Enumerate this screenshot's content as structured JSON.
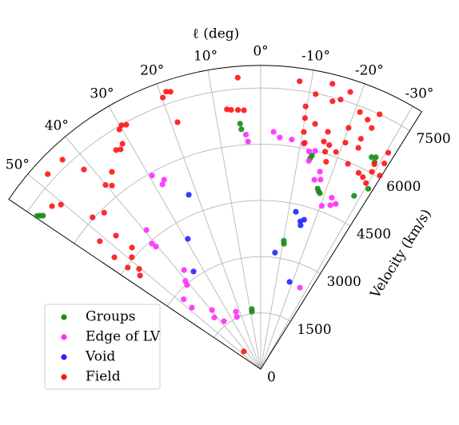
{
  "chart_data": {
    "type": "polar-scatter",
    "x_label": "ℓ (deg)",
    "y_label": "Velocity (km/s)",
    "xlim": [
      -32,
      56
    ],
    "ylim": [
      0,
      8100
    ],
    "xticks": [
      {
        "value": -30,
        "label": "-30°"
      },
      {
        "value": -20,
        "label": "-20°"
      },
      {
        "value": -10,
        "label": "-10°"
      },
      {
        "value": 0,
        "label": "0°"
      },
      {
        "value": 10,
        "label": "10°"
      },
      {
        "value": 20,
        "label": "20°"
      },
      {
        "value": 30,
        "label": "30°"
      },
      {
        "value": 40,
        "label": "40°"
      },
      {
        "value": 50,
        "label": "50°"
      }
    ],
    "yticks": [
      0,
      1500,
      3000,
      4500,
      6000,
      7500
    ],
    "grid": true,
    "legend": "lower left",
    "series": [
      {
        "name": "Groups",
        "color": "#1a8a1a",
        "x": [
          4.8,
          4.6,
          -13.5,
          -13.2,
          -18.6,
          -18.0,
          -17.5,
          -10.5,
          -10.2,
          8.7,
          8.4,
          -28.3,
          -28.5,
          -28.8,
          -27.6,
          -30.8,
          55.2,
          55.6,
          54.8
        ],
        "values": [
          6570,
          6420,
          5860,
          5780,
          4950,
          4990,
          5050,
          3400,
          3480,
          1550,
          1620,
          5250,
          6430,
          6300,
          6380,
          5600,
          7170,
          7230,
          7100
        ]
      },
      {
        "name": "Edge of LV",
        "color": "#ff2bff",
        "x": [
          3.2,
          3.6,
          -3.1,
          -4.7,
          -7.7,
          -10.8,
          -12.5,
          -14.0,
          -13.0,
          -16.7,
          -17.5,
          -15.8,
          -24.4,
          -23.0,
          -20.5,
          -22.5,
          -25.7,
          29.3,
          27.0,
          28.0,
          39.4,
          40.9,
          40.5,
          37.7,
          40.5,
          41.2,
          47.8,
          48.2,
          39.5,
          42.0,
          37.5,
          23.3,
          24.5
        ],
        "values": [
          6080,
          6270,
          6340,
          6200,
          6180,
          6120,
          5950,
          6000,
          5700,
          5500,
          5300,
          5250,
          4840,
          4750,
          4650,
          4950,
          2410,
          5920,
          5670,
          5580,
          4800,
          4430,
          4300,
          3340,
          3090,
          2980,
          2770,
          2460,
          2040,
          1850,
          1610,
          1670,
          1530
        ]
      },
      {
        "name": "Void",
        "color": "#2424ff",
        "x": [
          22.4,
          29.2,
          34.5,
          -12.6,
          -15.5,
          -15.0,
          -7.0,
          -18.3,
          -16.2
        ],
        "values": [
          5030,
          3980,
          3160,
          4300,
          3980,
          4080,
          3130,
          2450,
          4150
        ]
      },
      {
        "name": "Field",
        "color": "#ff1414",
        "x": [
          4.5,
          7.4,
          6.5,
          5.0,
          3.7,
          18.8,
          18.0,
          19.8,
          18.6,
          29.7,
          30.5,
          28.8,
          33.4,
          32.5,
          31.5,
          37.0,
          40.1,
          39.0,
          47.5,
          43.4,
          41.5,
          52.0,
          50.5,
          47.9,
          45.0,
          51.5,
          47.3,
          52.6,
          52.6,
          52.2,
          46.6,
          49.0,
          50.5,
          43.7,
          -7.7,
          -11.3,
          -14.1,
          -17.9,
          -16.5,
          -15.0,
          -9.7,
          -10.0,
          -10.3,
          -11.0,
          -15.8,
          -15.5,
          -12.5,
          -21.1,
          -23.2,
          -24.7,
          -23.5,
          -20.0,
          -23.8,
          -20.5,
          -19.1,
          -23.0,
          -26.5,
          -29.4,
          -29.0,
          -31.6,
          -28.0,
          -29.5,
          -31.0,
          -30.5,
          -25.0,
          -16.5,
          -17.5,
          -17.0
        ],
        "values": [
          7800,
          6990,
          6960,
          6940,
          6920,
          7820,
          7780,
          7700,
          6950,
          7490,
          7420,
          7440,
          7000,
          6950,
          7050,
          6590,
          6420,
          6300,
          7700,
          7690,
          7110,
          7060,
          6900,
          6040,
          5900,
          5480,
          5250,
          4910,
          4460,
          4070,
          4720,
          4550,
          4200,
          650,
          7750,
          7480,
          7850,
          7770,
          7500,
          7400,
          7110,
          6800,
          6430,
          6150,
          6580,
          6300,
          6700,
          7350,
          7240,
          7080,
          6700,
          6850,
          6450,
          6450,
          6130,
          5950,
          5850,
          6040,
          6250,
          6060,
          5800,
          5700,
          6400,
          6700,
          7500,
          6050,
          5800,
          6250
        ]
      }
    ]
  }
}
